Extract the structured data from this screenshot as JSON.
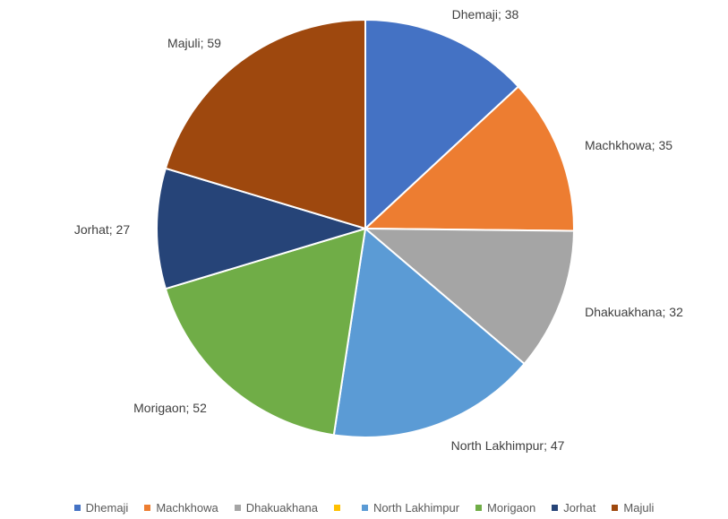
{
  "chart_data": {
    "type": "pie",
    "title": "",
    "slices": [
      {
        "name": "Dhemaji",
        "value": 38,
        "label": "Dhemaji; 38",
        "color": "#4472C4"
      },
      {
        "name": "Machkhowa",
        "value": 35,
        "label": "Machkhowa; 35",
        "color": "#ED7D31"
      },
      {
        "name": "Dhakuakhana",
        "value": 32,
        "label": "Dhakuakhana; 32",
        "color": "#A5A5A5"
      },
      {
        "name": "",
        "value": 0,
        "label": "",
        "color": "#FFC000"
      },
      {
        "name": "North Lakhimpur",
        "value": 47,
        "label": "North Lakhimpur; 47",
        "color": "#5B9BD5"
      },
      {
        "name": "Morigaon",
        "value": 52,
        "label": "Morigaon; 52",
        "color": "#70AD47"
      },
      {
        "name": "Jorhat",
        "value": 27,
        "label": "Jorhat; 27",
        "color": "#264478"
      },
      {
        "name": "Majuli",
        "value": 59,
        "label": "Majuli; 59",
        "color": "#9E480E"
      }
    ],
    "legend_position": "bottom",
    "start_angle": "12 o'clock",
    "direction": "clockwise"
  }
}
